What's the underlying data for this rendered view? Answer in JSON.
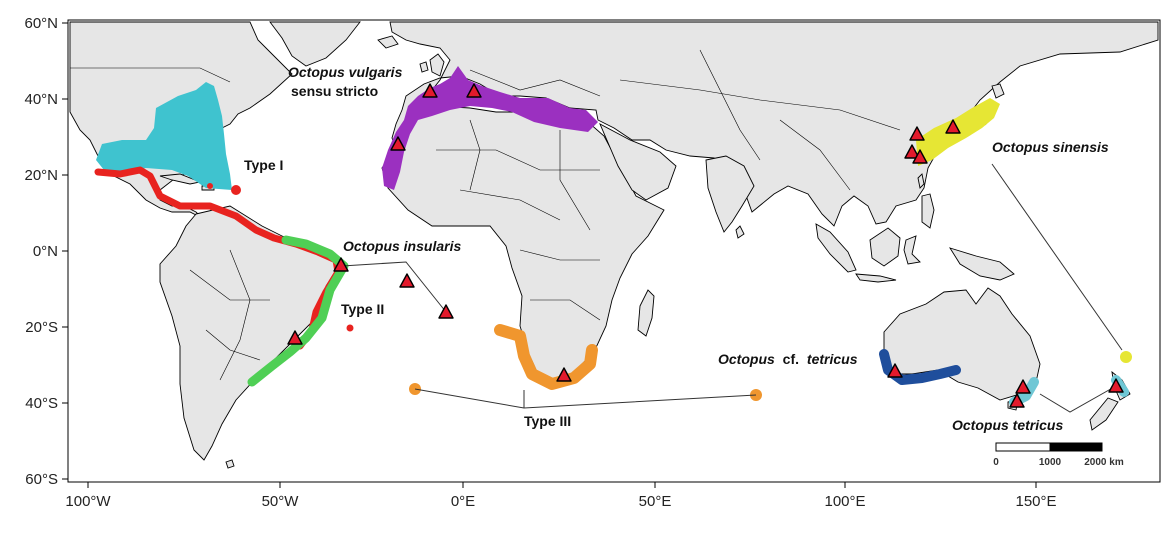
{
  "axes": {
    "x_ticks": [
      "100°W",
      "50°W",
      "0°E",
      "50°E",
      "100°E",
      "150°E"
    ],
    "y_ticks": [
      "60°N",
      "40°N",
      "20°N",
      "0°N",
      "20°S",
      "40°S",
      "60°S"
    ]
  },
  "labels": {
    "vulgaris_italic": "Octopus vulgaris",
    "vulgaris_rest": "sensu stricto",
    "type1": "Type I",
    "type2": "Type II",
    "type3": "Type III",
    "insularis": "Octopus insularis",
    "sinensis": "Octopus sinensis",
    "cf_tetricus_italic": "Octopus",
    "cf_tetricus_mid": "cf.",
    "cf_tetricus_end": "tetricus",
    "tetricus": "Octopus tetricus"
  },
  "scale_bar": {
    "labels": [
      "0",
      "1000",
      "2000 km"
    ]
  },
  "colors": {
    "type1": "#3fc3cf",
    "red": "#e8231f",
    "type2": "#4fcf55",
    "vulgaris": "#9b30c0",
    "type3": "#f0962e",
    "sinensis": "#e6e634",
    "cf_tetricus": "#1f4e9c",
    "tetricus": "#6fc7d5",
    "sample_marker": "#e31a2c"
  }
}
